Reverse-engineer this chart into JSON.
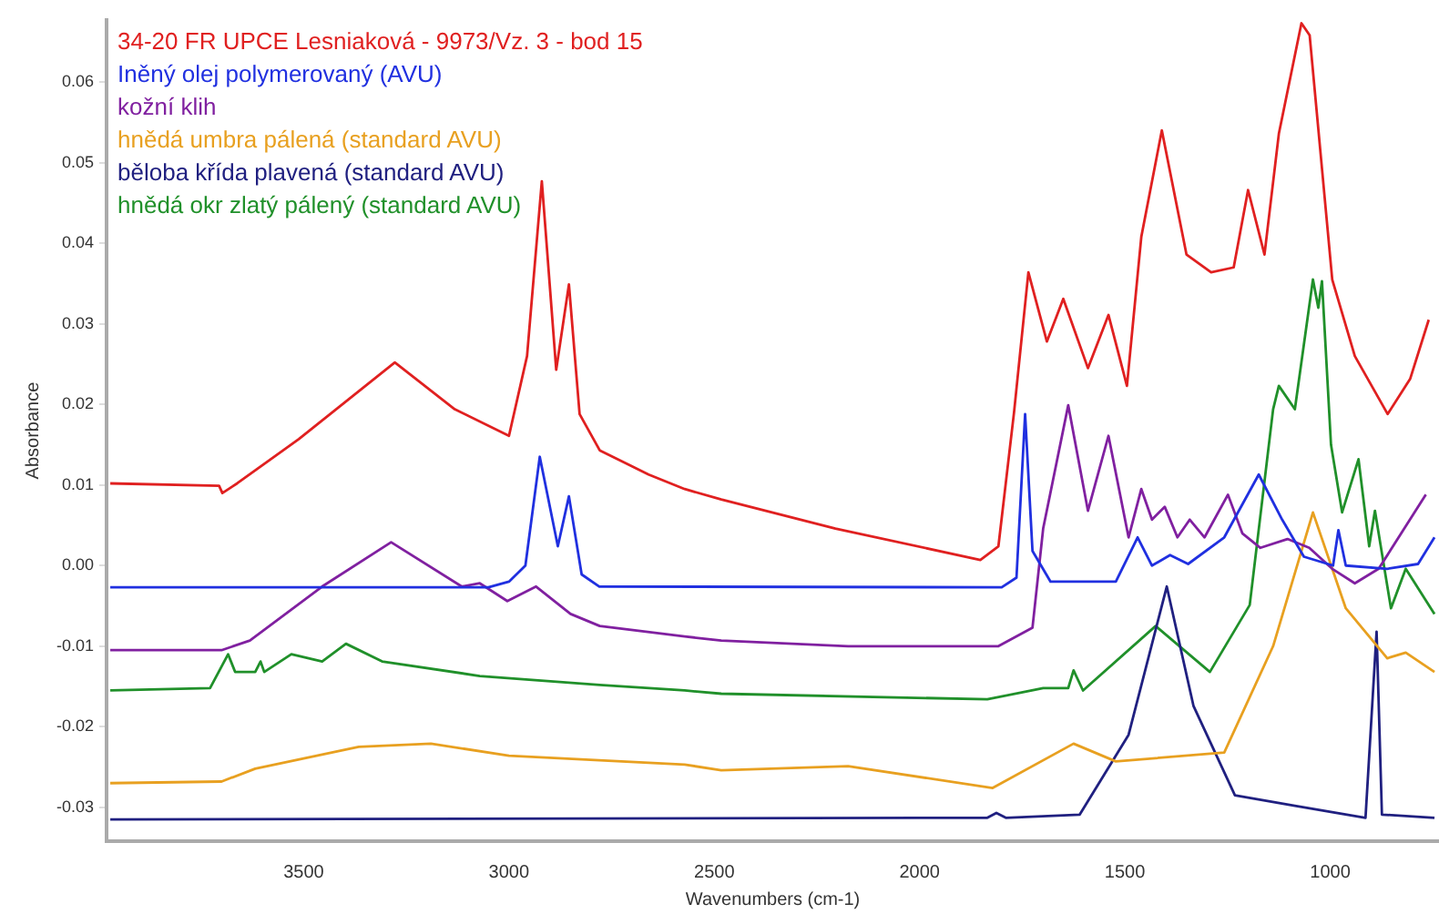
{
  "chart_data": {
    "type": "line",
    "xlabel": "Wavenumbers (cm-1)",
    "ylabel": "Absorbance",
    "xlim": [
      3980,
      735
    ],
    "xticks": [
      3500,
      3000,
      2500,
      2000,
      1500,
      1000
    ],
    "ylim": [
      -0.0342,
      0.0677
    ],
    "yticks": [
      -0.03,
      -0.02,
      -0.01,
      {
        "value": 0,
        "label": "0.00"
      },
      0.01,
      0.02,
      0.03,
      0.04,
      0.05,
      0.06
    ],
    "grid": false,
    "legend": "top left",
    "marker": "none",
    "line_style": "solid",
    "series": [
      {
        "name": "34-20 FR UPCE Lesniaková - 9973/Vz. 3 - bod 15",
        "color": "#e02020",
        "x": [
          3971,
          3706,
          3698,
          3662,
          3512,
          3278,
          3132,
          3000,
          2956,
          2920,
          2885,
          2854,
          2828,
          2779,
          2660,
          2572,
          2483,
          2205,
          1852,
          1808,
          1770,
          1735,
          1690,
          1650,
          1590,
          1540,
          1495,
          1460,
          1410,
          1350,
          1290,
          1235,
          1200,
          1160,
          1125,
          1070,
          1050,
          995,
          940,
          860,
          805,
          760
        ],
        "values": [
          0.0102,
          0.0099,
          0.009,
          0.0102,
          0.0157,
          0.0252,
          0.0194,
          0.0161,
          0.026,
          0.0477,
          0.0243,
          0.0349,
          0.0188,
          0.0143,
          0.0113,
          0.0095,
          0.0082,
          0.0046,
          0.0007,
          0.0024,
          0.019,
          0.0364,
          0.0278,
          0.0331,
          0.0245,
          0.0311,
          0.0223,
          0.0408,
          0.054,
          0.0386,
          0.0364,
          0.037,
          0.0466,
          0.0386,
          0.0536,
          0.0673,
          0.0658,
          0.0355,
          0.026,
          0.0188,
          0.0232,
          0.0305
        ]
      },
      {
        "name": "Iněný olej polymerovaný (AVU)",
        "color": "#2030e0",
        "x": [
          3971,
          3050,
          3000,
          2960,
          2925,
          2881,
          2854,
          2823,
          2780,
          1800,
          1764,
          1743,
          1725,
          1681,
          1522,
          1469,
          1434,
          1390,
          1346,
          1258,
          1174,
          1117,
          1064,
          993,
          980,
          962,
          861,
          786,
          746
        ],
        "values": [
          -0.0027,
          -0.0027,
          -0.002,
          0.0,
          0.0135,
          0.0024,
          0.0086,
          -0.0011,
          -0.0026,
          -0.0027,
          -0.0015,
          0.0188,
          0.0018,
          -0.002,
          -0.002,
          0.0035,
          0.0,
          0.0013,
          0.0002,
          0.0035,
          0.0113,
          0.0057,
          0.0011,
          0.0,
          0.0044,
          0.0,
          -0.0004,
          0.0002,
          0.0035
        ]
      },
      {
        "name": "kožní klih",
        "color": "#8020a0",
        "x": [
          3971,
          3700,
          3631,
          3455,
          3287,
          3115,
          3071,
          3004,
          2934,
          2850,
          2779,
          2572,
          2483,
          2174,
          1808,
          1725,
          1699,
          1638,
          1590,
          1540,
          1491,
          1460,
          1434,
          1403,
          1372,
          1342,
          1306,
          1249,
          1214,
          1170,
          1104,
          1051,
          995,
          940,
          882,
          767
        ],
        "values": [
          -0.0105,
          -0.0105,
          -0.0093,
          -0.0026,
          0.0029,
          -0.0026,
          -0.0022,
          -0.0044,
          -0.0026,
          -0.006,
          -0.0075,
          -0.0088,
          -0.0093,
          -0.01,
          -0.01,
          -0.0077,
          0.0046,
          0.0199,
          0.0068,
          0.0161,
          0.0035,
          0.0095,
          0.0057,
          0.0073,
          0.0035,
          0.0057,
          0.0035,
          0.0088,
          0.004,
          0.0022,
          0.0033,
          0.0022,
          -0.0004,
          -0.0022,
          -0.0004,
          0.0088
        ]
      },
      {
        "name": "hnědá umbra pálená (standard AVU)",
        "color": "#e8a020",
        "x": [
          3971,
          3700,
          3618,
          3366,
          3190,
          3000,
          2572,
          2483,
          2174,
          1822,
          1625,
          1522,
          1258,
          1139,
          1042,
          962,
          861,
          816,
          746
        ],
        "values": [
          -0.027,
          -0.0268,
          -0.0252,
          -0.0225,
          -0.0221,
          -0.0236,
          -0.0247,
          -0.0254,
          -0.0249,
          -0.0276,
          -0.0221,
          -0.0243,
          -0.0232,
          -0.01,
          0.0066,
          -0.0053,
          -0.0115,
          -0.0108,
          -0.0132
        ]
      },
      {
        "name": "běloba křída plavená (standard AVU)",
        "color": "#202080",
        "x": [
          3971,
          2000,
          1835,
          1813,
          1790,
          1610,
          1491,
          1398,
          1333,
          1232,
          1086,
          914,
          887,
          874,
          746
        ],
        "values": [
          -0.0315,
          -0.0313,
          -0.0313,
          -0.0307,
          -0.0313,
          -0.0309,
          -0.021,
          -0.0026,
          -0.0174,
          -0.0285,
          -0.0298,
          -0.0313,
          -0.0082,
          -0.0309,
          -0.0313
        ]
      },
      {
        "name": "hnědá okr zlatý pálený (standard AVU)",
        "color": "#20902a",
        "x": [
          3971,
          3728,
          3684,
          3667,
          3618,
          3605,
          3596,
          3530,
          3455,
          3397,
          3309,
          3071,
          2779,
          2572,
          2483,
          1835,
          1699,
          1638,
          1625,
          1602,
          1425,
          1293,
          1196,
          1139,
          1125,
          1086,
          1042,
          1029,
          1020,
          998,
          971,
          931,
          905,
          891,
          852,
          816,
          746
        ],
        "values": [
          -0.0155,
          -0.0152,
          -0.011,
          -0.0132,
          -0.0132,
          -0.0119,
          -0.0132,
          -0.011,
          -0.0119,
          -0.0097,
          -0.0119,
          -0.0137,
          -0.0148,
          -0.0155,
          -0.0159,
          -0.0166,
          -0.0152,
          -0.0152,
          -0.013,
          -0.0155,
          -0.0075,
          -0.0132,
          -0.0049,
          0.0194,
          0.0223,
          0.0194,
          0.0355,
          0.032,
          0.0353,
          0.015,
          0.0066,
          0.0132,
          0.0024,
          0.0068,
          -0.0053,
          -0.0004,
          -0.006
        ]
      }
    ]
  }
}
